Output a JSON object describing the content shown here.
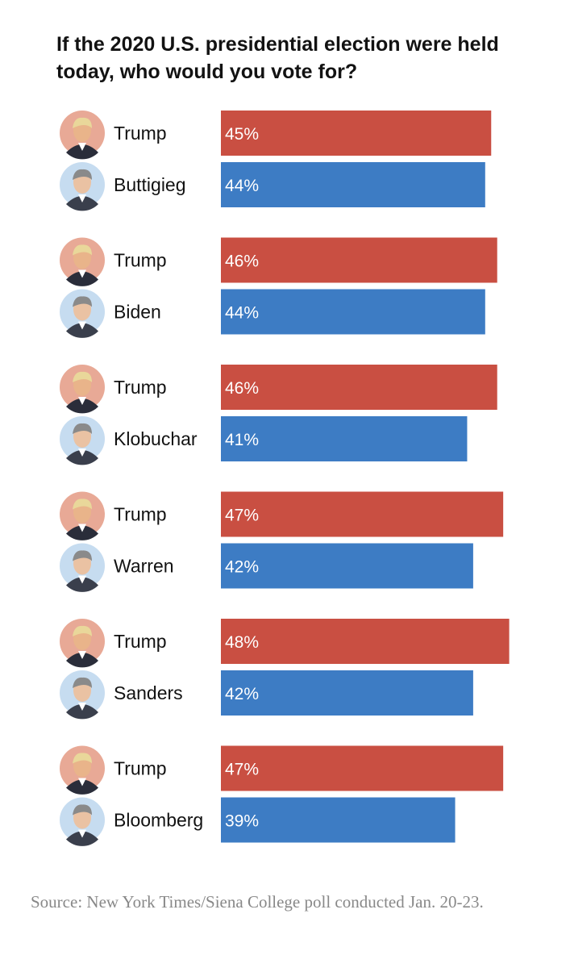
{
  "chart_data": {
    "type": "bar",
    "title": "If the 2020 U.S. presidential election were held today, who would you vote for?",
    "source": "Source: New York Times/Siena College poll conducted Jan. 20-23.",
    "value_suffix": "%",
    "xlim": [
      0,
      50
    ],
    "colors": {
      "Republican": "#c94f42",
      "Democrat": "#3d7cc4"
    },
    "matchups": [
      {
        "candidates": [
          {
            "name": "Trump",
            "party": "Republican",
            "value": 45
          },
          {
            "name": "Buttigieg",
            "party": "Democrat",
            "value": 44
          }
        ]
      },
      {
        "candidates": [
          {
            "name": "Trump",
            "party": "Republican",
            "value": 46
          },
          {
            "name": "Biden",
            "party": "Democrat",
            "value": 44
          }
        ]
      },
      {
        "candidates": [
          {
            "name": "Trump",
            "party": "Republican",
            "value": 46
          },
          {
            "name": "Klobuchar",
            "party": "Democrat",
            "value": 41
          }
        ]
      },
      {
        "candidates": [
          {
            "name": "Trump",
            "party": "Republican",
            "value": 47
          },
          {
            "name": "Warren",
            "party": "Democrat",
            "value": 42
          }
        ]
      },
      {
        "candidates": [
          {
            "name": "Trump",
            "party": "Republican",
            "value": 48
          },
          {
            "name": "Sanders",
            "party": "Democrat",
            "value": 42
          }
        ]
      },
      {
        "candidates": [
          {
            "name": "Trump",
            "party": "Republican",
            "value": 47
          },
          {
            "name": "Bloomberg",
            "party": "Democrat",
            "value": 39
          }
        ]
      }
    ]
  }
}
